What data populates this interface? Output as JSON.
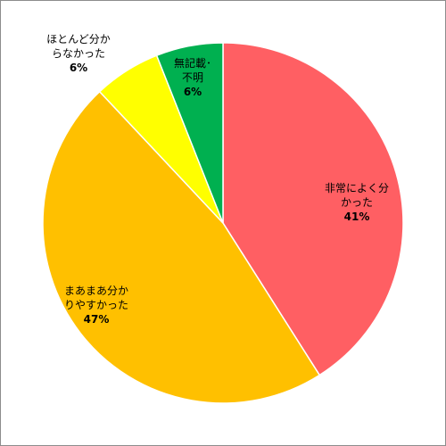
{
  "chart_data": {
    "type": "pie",
    "title": "",
    "start_angle_deg": 0,
    "direction": "clockwise",
    "slices": [
      {
        "label_lines": [
          "非常によく分",
          "かった"
        ],
        "value": 41,
        "value_label": "41%",
        "color": "#ff5f63"
      },
      {
        "label_lines": [
          "まあまあ分か",
          "りやすかった"
        ],
        "value": 47,
        "value_label": "47%",
        "color": "#ffc000"
      },
      {
        "label_lines": [
          "ほとんど分か",
          "らなかった"
        ],
        "value": 6,
        "value_label": "6%",
        "color": "#ffff00"
      },
      {
        "label_lines": [
          "無記載･",
          "不明"
        ],
        "value": 6,
        "value_label": "6%",
        "color": "#00b050"
      }
    ]
  }
}
